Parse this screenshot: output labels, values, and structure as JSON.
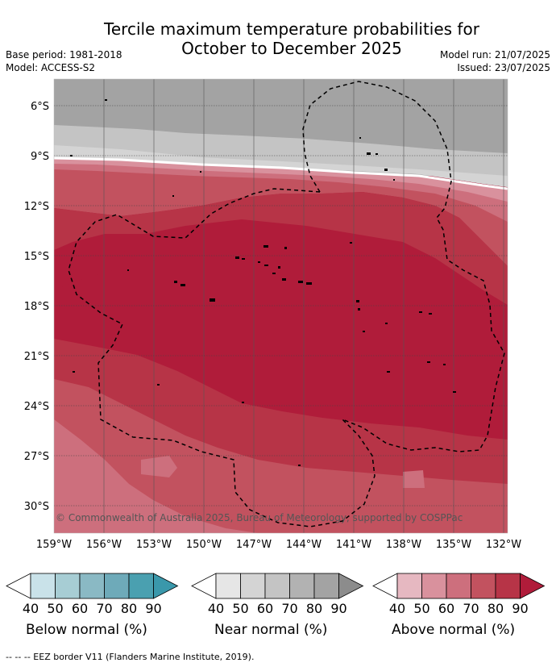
{
  "header": {
    "title_line1": "Tercile maximum temperature probabilities for",
    "title_line2": "October to December 2025",
    "base_period": "Base period: 1981-2018",
    "model": "Model: ACCESS-S2",
    "model_run": "Model run: 21/07/2025",
    "issued": "Issued: 23/07/2025"
  },
  "map": {
    "lat_labels": [
      "6°S",
      "9°S",
      "12°S",
      "15°S",
      "18°S",
      "21°S",
      "24°S",
      "27°S",
      "30°S"
    ],
    "lon_labels": [
      "159°W",
      "156°W",
      "153°W",
      "150°W",
      "147°W",
      "144°W",
      "141°W",
      "138°W",
      "135°W",
      "132°W"
    ],
    "copyright": "© Commonwealth of Australia 2025, Bureau of Meteorology, supported by COSPPac",
    "colors": {
      "near_normal": [
        "#e6e6e6",
        "#d4d4d4",
        "#c4c4c4",
        "#b2b2b2",
        "#a3a3a3",
        "#8c8c8c"
      ],
      "above_normal": [
        "#e6b8c1",
        "#d9919d",
        "#cd6f7d",
        "#c2525f",
        "#b73447",
        "#b01c3a"
      ],
      "below_normal": [
        "#c9e2e9",
        "#a7cdd4",
        "#8ab9c4",
        "#6eaab9",
        "#4aa0b0",
        "#3a98ab"
      ]
    }
  },
  "colorbars": [
    {
      "label": "Below normal (%)",
      "ticks": [
        "40",
        "50",
        "60",
        "70",
        "80",
        "90"
      ]
    },
    {
      "label": "Near normal (%)",
      "ticks": [
        "40",
        "50",
        "60",
        "70",
        "80",
        "90"
      ]
    },
    {
      "label": "Above normal (%)",
      "ticks": [
        "40",
        "50",
        "60",
        "70",
        "80",
        "90"
      ]
    }
  ],
  "footnote": "--  --  -- EEZ border V11 (Flanders Marine Institute, 2019)."
}
